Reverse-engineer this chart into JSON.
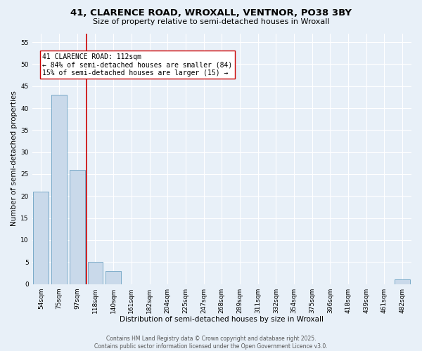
{
  "title_line1": "41, CLARENCE ROAD, WROXALL, VENTNOR, PO38 3BY",
  "title_line2": "Size of property relative to semi-detached houses in Wroxall",
  "xlabel": "Distribution of semi-detached houses by size in Wroxall",
  "ylabel": "Number of semi-detached properties",
  "categories": [
    "54sqm",
    "75sqm",
    "97sqm",
    "118sqm",
    "140sqm",
    "161sqm",
    "182sqm",
    "204sqm",
    "225sqm",
    "247sqm",
    "268sqm",
    "289sqm",
    "311sqm",
    "332sqm",
    "354sqm",
    "375sqm",
    "396sqm",
    "418sqm",
    "439sqm",
    "461sqm",
    "482sqm"
  ],
  "values": [
    21,
    43,
    26,
    5,
    3,
    0,
    0,
    0,
    0,
    0,
    0,
    0,
    0,
    0,
    0,
    0,
    0,
    0,
    0,
    0,
    1
  ],
  "bar_color": "#c9d9ea",
  "bar_edge_color": "#7aaac8",
  "vline_x_index": 3,
  "vline_color": "#cc0000",
  "annotation_text": "41 CLARENCE ROAD: 112sqm\n← 84% of semi-detached houses are smaller (84)\n15% of semi-detached houses are larger (15) →",
  "annotation_box_color": "#ffffff",
  "annotation_box_edge": "#cc0000",
  "ylim": [
    0,
    57
  ],
  "yticks": [
    0,
    5,
    10,
    15,
    20,
    25,
    30,
    35,
    40,
    45,
    50,
    55
  ],
  "bg_color": "#e8f0f8",
  "plot_bg_color": "#e8f0f8",
  "grid_color": "#ffffff",
  "footer_text": "Contains HM Land Registry data © Crown copyright and database right 2025.\nContains public sector information licensed under the Open Government Licence v3.0.",
  "title_fontsize": 9.5,
  "subtitle_fontsize": 8,
  "axis_label_fontsize": 7.5,
  "tick_fontsize": 6.5,
  "annotation_fontsize": 7,
  "footer_fontsize": 5.5
}
